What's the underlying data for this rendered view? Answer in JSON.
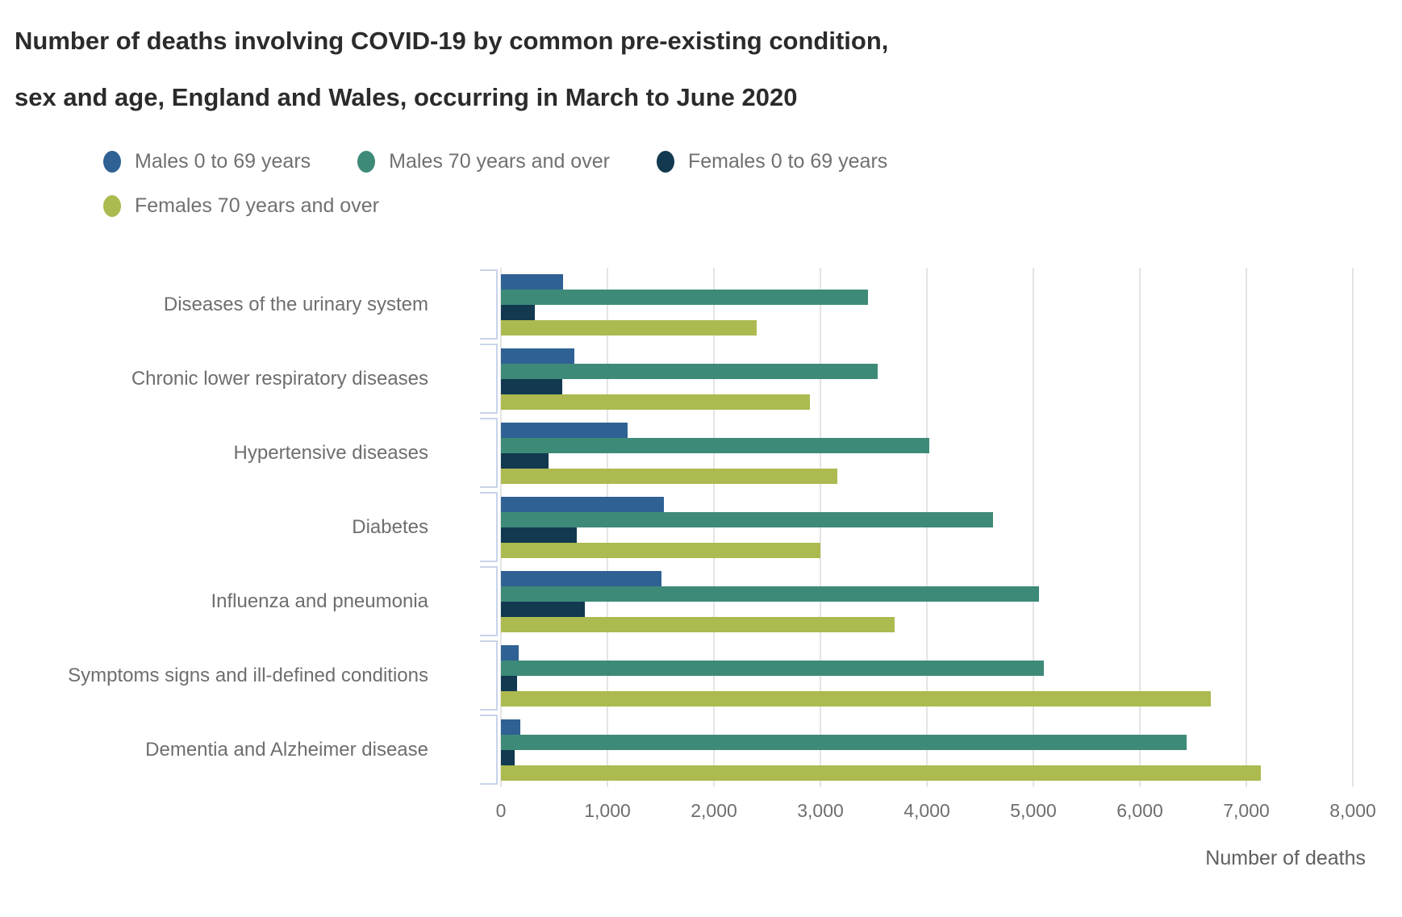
{
  "header": {
    "title_line1": "Number of deaths involving COVID-19 by common pre-existing condition,",
    "title_line2": "sex and age, England and Wales, occurring in March to June 2020"
  },
  "chart_data": {
    "type": "bar",
    "orientation": "horizontal",
    "title": "Number of deaths involving COVID-19 by common pre-existing condition, sex and age, England and Wales, occurring in March to June 2020",
    "xlabel": "Number of deaths",
    "ylabel": "",
    "xlim": [
      0,
      8000
    ],
    "xticks": [
      "0",
      "1,000",
      "2,000",
      "3,000",
      "4,000",
      "5,000",
      "6,000",
      "7,000",
      "8,000"
    ],
    "grid": true,
    "legend_position": "top-left",
    "categories": [
      "Diseases of the urinary system",
      "Chronic lower respiratory diseases",
      "Hypertensive diseases",
      "Diabetes",
      "Influenza and pneumonia",
      "Symptoms signs and ill-defined conditions",
      "Dementia and Alzheimer disease"
    ],
    "series": [
      {
        "key": "males-0-69",
        "name": "Males 0 to 69 years",
        "color": "#2f6194",
        "values": [
          580,
          690,
          1190,
          1530,
          1510,
          165,
          185
        ]
      },
      {
        "key": "males-70-over",
        "name": "Males 70 years and over",
        "color": "#3e8a79",
        "values": [
          3450,
          3540,
          4020,
          4620,
          5050,
          5100,
          6440
        ]
      },
      {
        "key": "females-0-69",
        "name": "Females 0 to 69 years",
        "color": "#12394f",
        "values": [
          320,
          575,
          450,
          710,
          790,
          150,
          130
        ]
      },
      {
        "key": "females-70-over",
        "name": "Females 70 years and over",
        "color": "#acba4f",
        "values": [
          2400,
          2900,
          3160,
          3000,
          3700,
          6670,
          7140
        ]
      }
    ]
  }
}
